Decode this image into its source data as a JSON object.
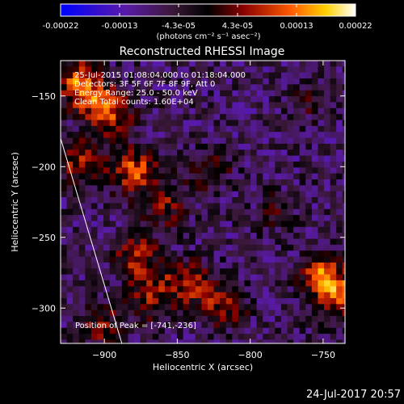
{
  "colorbar": {
    "tick_labels": [
      "-0.00022",
      "-0.00013",
      "-4.3e-05",
      "4.3e-05",
      "0.00013",
      "0.00022"
    ],
    "unit_label": "(photons cm⁻² s⁻¹ asec⁻²)"
  },
  "chart_data": {
    "type": "heatmap",
    "title": "Reconstructed RHESSI Image",
    "xlabel": "Heliocentric X (arcsec)",
    "ylabel": "Heliocentric Y (arcsec)",
    "xlim": [
      -930,
      -735
    ],
    "ylim": [
      -325,
      -125
    ],
    "x_ticks": [
      -900,
      -850,
      -800,
      -750
    ],
    "y_ticks": [
      -300,
      -250,
      -200,
      -150
    ],
    "x_tick_labels": [
      "−900",
      "−850",
      "−800",
      "−750"
    ],
    "y_tick_labels": [
      "−300",
      "−250",
      "−200",
      "−150"
    ],
    "value_range": [
      -0.00022,
      0.00022
    ],
    "limb_line": [
      [
        -930,
        -180
      ],
      [
        -888,
        -325
      ]
    ],
    "peak": {
      "x": -741,
      "y": -236
    },
    "info_lines": [
      "25-Jul-2015 01:08:04.000 to 01:18:04.000",
      "Detectors: 3F 5F 6F 7F 8F 9F, Att 0",
      "Energy Range: 25.0 - 50.0 keV",
      "Clean    Total counts: 1.60E+04"
    ],
    "peak_label": "Position of Peak = [-741,-236]",
    "hotspots": [
      {
        "x": -918,
        "y": -140,
        "v": 0.0002
      },
      {
        "x": -900,
        "y": -160,
        "v": 0.00018
      },
      {
        "x": -920,
        "y": -195,
        "v": 0.00012
      },
      {
        "x": -882,
        "y": -200,
        "v": 0.00017
      },
      {
        "x": -860,
        "y": -225,
        "v": 0.00011
      },
      {
        "x": -880,
        "y": -262,
        "v": 0.00013
      },
      {
        "x": -870,
        "y": -290,
        "v": 0.00012
      },
      {
        "x": -845,
        "y": -280,
        "v": 0.00014
      },
      {
        "x": -820,
        "y": -295,
        "v": 0.00012
      },
      {
        "x": -830,
        "y": -200,
        "v": 8e-05
      },
      {
        "x": -752,
        "y": -275,
        "v": 0.00017
      },
      {
        "x": -740,
        "y": -290,
        "v": 0.00016
      },
      {
        "x": -760,
        "y": -150,
        "v": 6e-05
      },
      {
        "x": -785,
        "y": -230,
        "v": 5e-05
      },
      {
        "x": -905,
        "y": -310,
        "v": 0.0001
      }
    ]
  },
  "footer": {
    "date": "24-Jul-2017 20:57"
  }
}
